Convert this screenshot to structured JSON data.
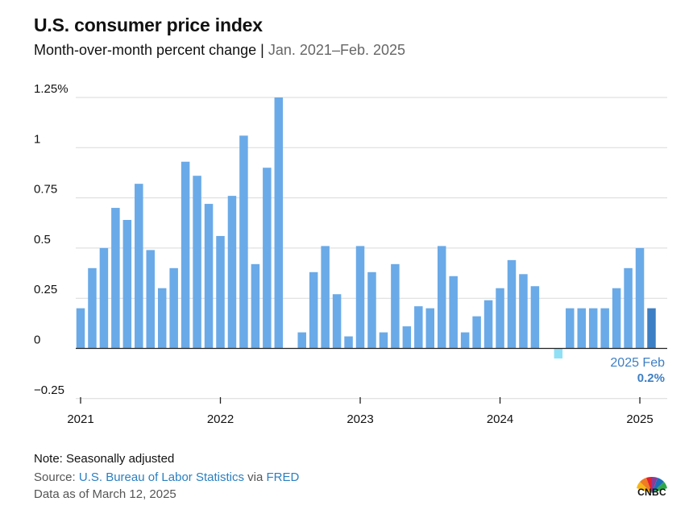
{
  "title": "U.S. consumer price index",
  "subtitle_main": "Month-over-month percent change",
  "subtitle_sep": "|",
  "subtitle_range": "Jan. 2021–Feb. 2025",
  "note_line": "Note: Seasonally adjusted",
  "source_prefix": "Source: ",
  "source_name": "U.S. Bureau of Labor Statistics",
  "source_via": " via ",
  "source_fred": "FRED",
  "data_as_of": "Data as of March 12, 2025",
  "logo_text": "CNBC",
  "colors": {
    "bar": "#6aaae8",
    "bar_negative": "#8fe0f5",
    "bar_highlight": "#3d7fc4",
    "annotation": "#3d7fc4",
    "grid": "#d9d9d9",
    "baseline": "#222222",
    "link": "#2a7fc1"
  },
  "chart_data": {
    "type": "bar",
    "ylim": [
      -0.25,
      1.25
    ],
    "yticks": [
      {
        "value": 1.25,
        "label": "1.25%"
      },
      {
        "value": 1,
        "label": "1"
      },
      {
        "value": 0.75,
        "label": "0.75"
      },
      {
        "value": 0.5,
        "label": "0.5"
      },
      {
        "value": 0.25,
        "label": "0.25"
      },
      {
        "value": 0,
        "label": "0"
      },
      {
        "value": -0.25,
        "label": "−0.25"
      }
    ],
    "xticks": [
      "2021",
      "2022",
      "2023",
      "2024",
      "2025"
    ],
    "start": "2021-01",
    "series": [
      {
        "values": [
          0.2,
          0.4,
          0.5,
          0.7,
          0.64,
          0.82,
          0.49,
          0.3,
          0.4,
          0.93,
          0.86,
          0.72,
          0.56,
          0.76,
          1.06,
          0.42,
          0.9,
          1.25,
          0.0,
          0.08,
          0.38,
          0.51,
          0.27,
          0.06,
          0.51,
          0.38,
          0.08,
          0.42,
          0.11,
          0.21,
          0.2,
          0.51,
          0.36,
          0.08,
          0.16,
          0.24,
          0.3,
          0.44,
          0.37,
          0.31,
          0.0,
          -0.05,
          0.2,
          0.2,
          0.2,
          0.2,
          0.3,
          0.4,
          0.5,
          0.2
        ]
      }
    ],
    "annotation": {
      "line1": "2025 Feb",
      "line2": "0.2%"
    }
  }
}
